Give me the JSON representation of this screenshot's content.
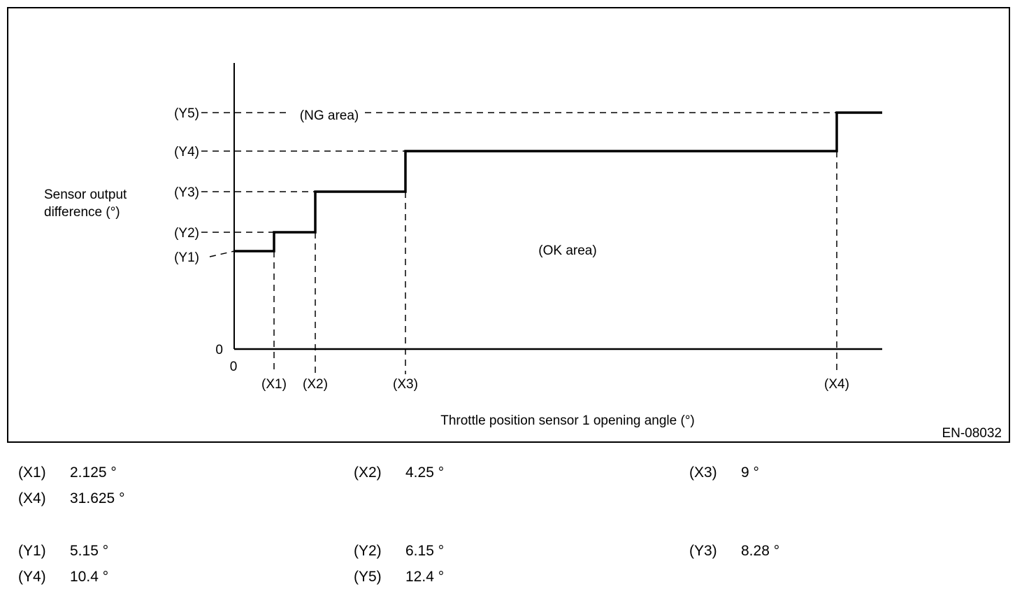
{
  "diagram": {
    "y_axis_label_line1": "Sensor output",
    "y_axis_label_line2": "difference (°)",
    "x_axis_label": "Throttle position sensor 1 opening angle (°)",
    "figure_id": "EN-08032",
    "origin_x": "0",
    "origin_y": "0",
    "ng_area": "(NG area)",
    "ok_area": "(OK area)",
    "x_ticks": [
      "(X1)",
      "(X2)",
      "(X3)",
      "(X4)"
    ],
    "y_ticks": [
      "(Y5)",
      "(Y4)",
      "(Y3)",
      "(Y2)",
      "(Y1)"
    ]
  },
  "legend": {
    "x1": {
      "key": "(X1)",
      "value": "2.125 °"
    },
    "x2": {
      "key": "(X2)",
      "value": "4.25 °"
    },
    "x3": {
      "key": "(X3)",
      "value": "9 °"
    },
    "x4": {
      "key": "(X4)",
      "value": "31.625 °"
    },
    "y1": {
      "key": "(Y1)",
      "value": "5.15 °"
    },
    "y2": {
      "key": "(Y2)",
      "value": "6.15 °"
    },
    "y3": {
      "key": "(Y3)",
      "value": "8.28 °"
    },
    "y4": {
      "key": "(Y4)",
      "value": "10.4 °"
    },
    "y5": {
      "key": "(Y5)",
      "value": "12.4 °"
    }
  }
}
